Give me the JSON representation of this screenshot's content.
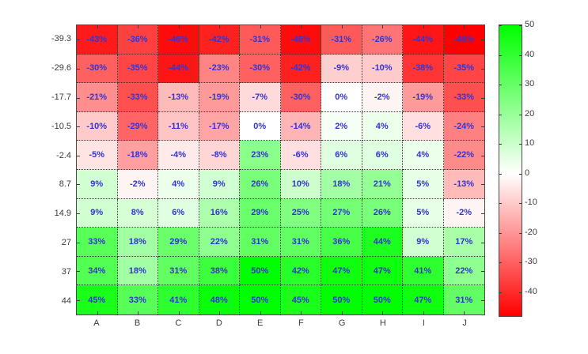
{
  "figure": {
    "background": "#ffffff"
  },
  "chart_data": {
    "type": "heatmap",
    "title": "",
    "xlabel": "",
    "ylabel": "",
    "x_categories": [
      "A",
      "B",
      "C",
      "D",
      "E",
      "F",
      "G",
      "H",
      "I",
      "J"
    ],
    "y_categories": [
      "-39.3",
      "-29.6",
      "-17.7",
      "-10.5",
      "-2.4",
      "8.7",
      "14.9",
      "27",
      "37",
      "44"
    ],
    "values": [
      [
        -43,
        -36,
        -46,
        -42,
        -31,
        -46,
        -31,
        -26,
        -44,
        -48
      ],
      [
        -30,
        -35,
        -44,
        -23,
        -30,
        -42,
        -9,
        -10,
        -38,
        -35
      ],
      [
        -21,
        -33,
        -13,
        -19,
        -7,
        -30,
        0,
        -2,
        -19,
        -33
      ],
      [
        -10,
        -29,
        -11,
        -17,
        0,
        -14,
        2,
        4,
        -6,
        -24
      ],
      [
        -5,
        -18,
        -4,
        -8,
        23,
        -6,
        6,
        6,
        4,
        -22
      ],
      [
        9,
        -2,
        4,
        9,
        26,
        10,
        18,
        21,
        5,
        -13
      ],
      [
        9,
        8,
        6,
        16,
        29,
        25,
        27,
        26,
        5,
        -2
      ],
      [
        33,
        18,
        29,
        22,
        31,
        31,
        36,
        44,
        9,
        17
      ],
      [
        34,
        18,
        31,
        38,
        50,
        42,
        47,
        47,
        41,
        22
      ],
      [
        45,
        33,
        41,
        48,
        50,
        45,
        50,
        50,
        47,
        31
      ]
    ],
    "value_suffix": "%",
    "grid": "dotted",
    "legend_position": "none",
    "colorbar": {
      "min": -48,
      "max": 50,
      "tick_values": [
        50,
        40,
        30,
        20,
        10,
        0,
        -10,
        -20,
        -30,
        -40
      ],
      "color_positive": "#00ff00",
      "color_zero": "#ffffff",
      "color_negative": "#ff0000"
    },
    "colors": {
      "cell_text": "#3434d4",
      "axis_text": "#3c3c3c",
      "axis_border": "#4a4a4a"
    }
  }
}
